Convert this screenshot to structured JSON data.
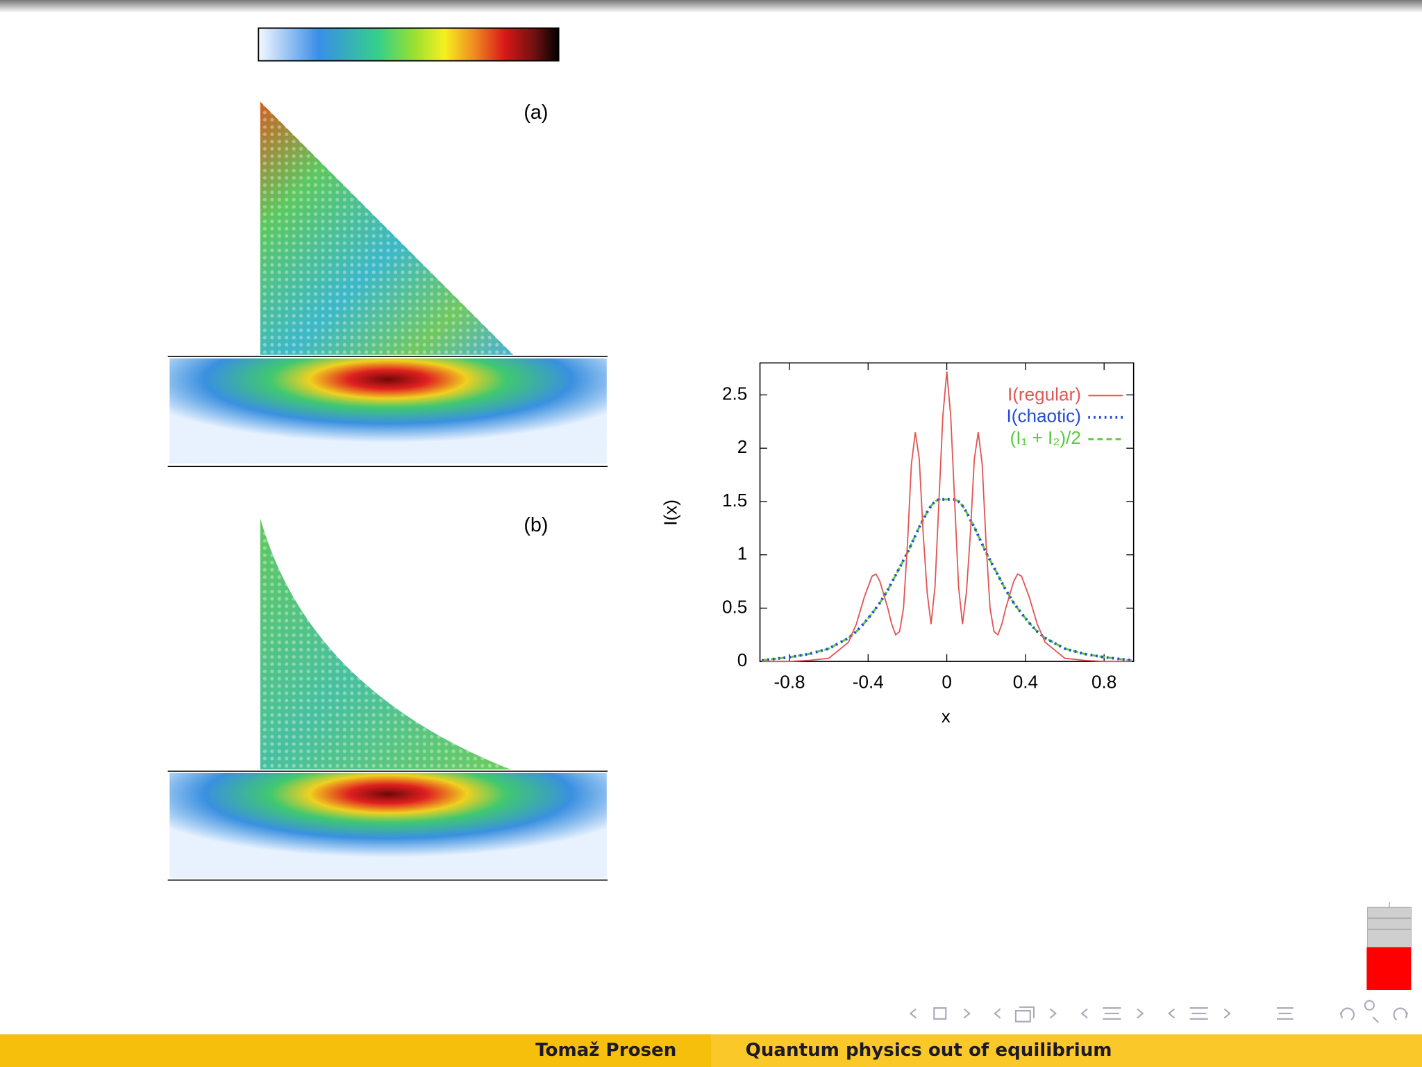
{
  "chart_data": {
    "type": "line",
    "x_label": "x",
    "y_label": "I(x)",
    "x": [
      -0.94,
      -0.8,
      -0.7,
      -0.6,
      -0.5,
      -0.46,
      -0.42,
      -0.38,
      -0.36,
      -0.34,
      -0.3,
      -0.28,
      -0.26,
      -0.24,
      -0.22,
      -0.2,
      -0.18,
      -0.16,
      -0.14,
      -0.12,
      -0.1,
      -0.08,
      -0.06,
      -0.04,
      -0.02,
      0,
      0.02,
      0.04,
      0.06,
      0.08,
      0.1,
      0.12,
      0.14,
      0.16,
      0.18,
      0.2,
      0.22,
      0.24,
      0.26,
      0.28,
      0.3,
      0.34,
      0.36,
      0.38,
      0.42,
      0.46,
      0.5,
      0.6,
      0.7,
      0.8,
      0.94
    ],
    "series": [
      {
        "name": "I(regular)",
        "color": "#e25555",
        "style": "solid",
        "values": [
          0,
          0,
          0.01,
          0.03,
          0.18,
          0.35,
          0.6,
          0.8,
          0.82,
          0.75,
          0.5,
          0.35,
          0.25,
          0.28,
          0.5,
          1.1,
          1.85,
          2.15,
          1.9,
          1.2,
          0.65,
          0.35,
          0.7,
          1.5,
          2.3,
          2.72,
          2.3,
          1.5,
          0.7,
          0.35,
          0.65,
          1.2,
          1.9,
          2.15,
          1.85,
          1.1,
          0.5,
          0.28,
          0.25,
          0.35,
          0.5,
          0.75,
          0.82,
          0.8,
          0.6,
          0.35,
          0.18,
          0.03,
          0.01,
          0,
          0
        ]
      },
      {
        "name": "I(chaotic)",
        "color": "#2548d8",
        "style": "dotted",
        "values": [
          0.01,
          0.04,
          0.07,
          0.12,
          0.22,
          0.28,
          0.36,
          0.45,
          0.5,
          0.55,
          0.67,
          0.74,
          0.81,
          0.88,
          0.95,
          1.02,
          1.1,
          1.18,
          1.26,
          1.33,
          1.4,
          1.46,
          1.5,
          1.52,
          1.52,
          1.52,
          1.52,
          1.52,
          1.5,
          1.46,
          1.4,
          1.33,
          1.26,
          1.18,
          1.1,
          1.02,
          0.95,
          0.88,
          0.81,
          0.74,
          0.67,
          0.55,
          0.5,
          0.45,
          0.36,
          0.28,
          0.22,
          0.12,
          0.07,
          0.04,
          0.01
        ]
      },
      {
        "name": "(I₁ + I₂)/2",
        "color": "#55cc3a",
        "style": "dashed",
        "values": [
          0.01,
          0.04,
          0.07,
          0.12,
          0.22,
          0.28,
          0.36,
          0.45,
          0.5,
          0.55,
          0.67,
          0.74,
          0.81,
          0.88,
          0.95,
          1.02,
          1.1,
          1.18,
          1.26,
          1.33,
          1.4,
          1.46,
          1.5,
          1.52,
          1.52,
          1.52,
          1.52,
          1.52,
          1.5,
          1.46,
          1.4,
          1.33,
          1.26,
          1.18,
          1.1,
          1.02,
          0.95,
          0.88,
          0.81,
          0.74,
          0.67,
          0.55,
          0.5,
          0.45,
          0.36,
          0.28,
          0.22,
          0.12,
          0.07,
          0.04,
          0.01
        ]
      }
    ],
    "xlim": [
      -0.95,
      0.95
    ],
    "xticks": [
      -0.8,
      -0.4,
      0,
      0.4,
      0.8
    ],
    "ylim": [
      0,
      2.8
    ],
    "yticks": [
      0,
      0.5,
      1,
      1.5,
      2,
      2.5
    ],
    "legend": "top-right",
    "grid": false
  },
  "figure_labels": [
    "(a)",
    "(b)"
  ],
  "footer": {
    "author": "Tomaž Prosen",
    "title": "Quantum physics out of equilibrium"
  }
}
